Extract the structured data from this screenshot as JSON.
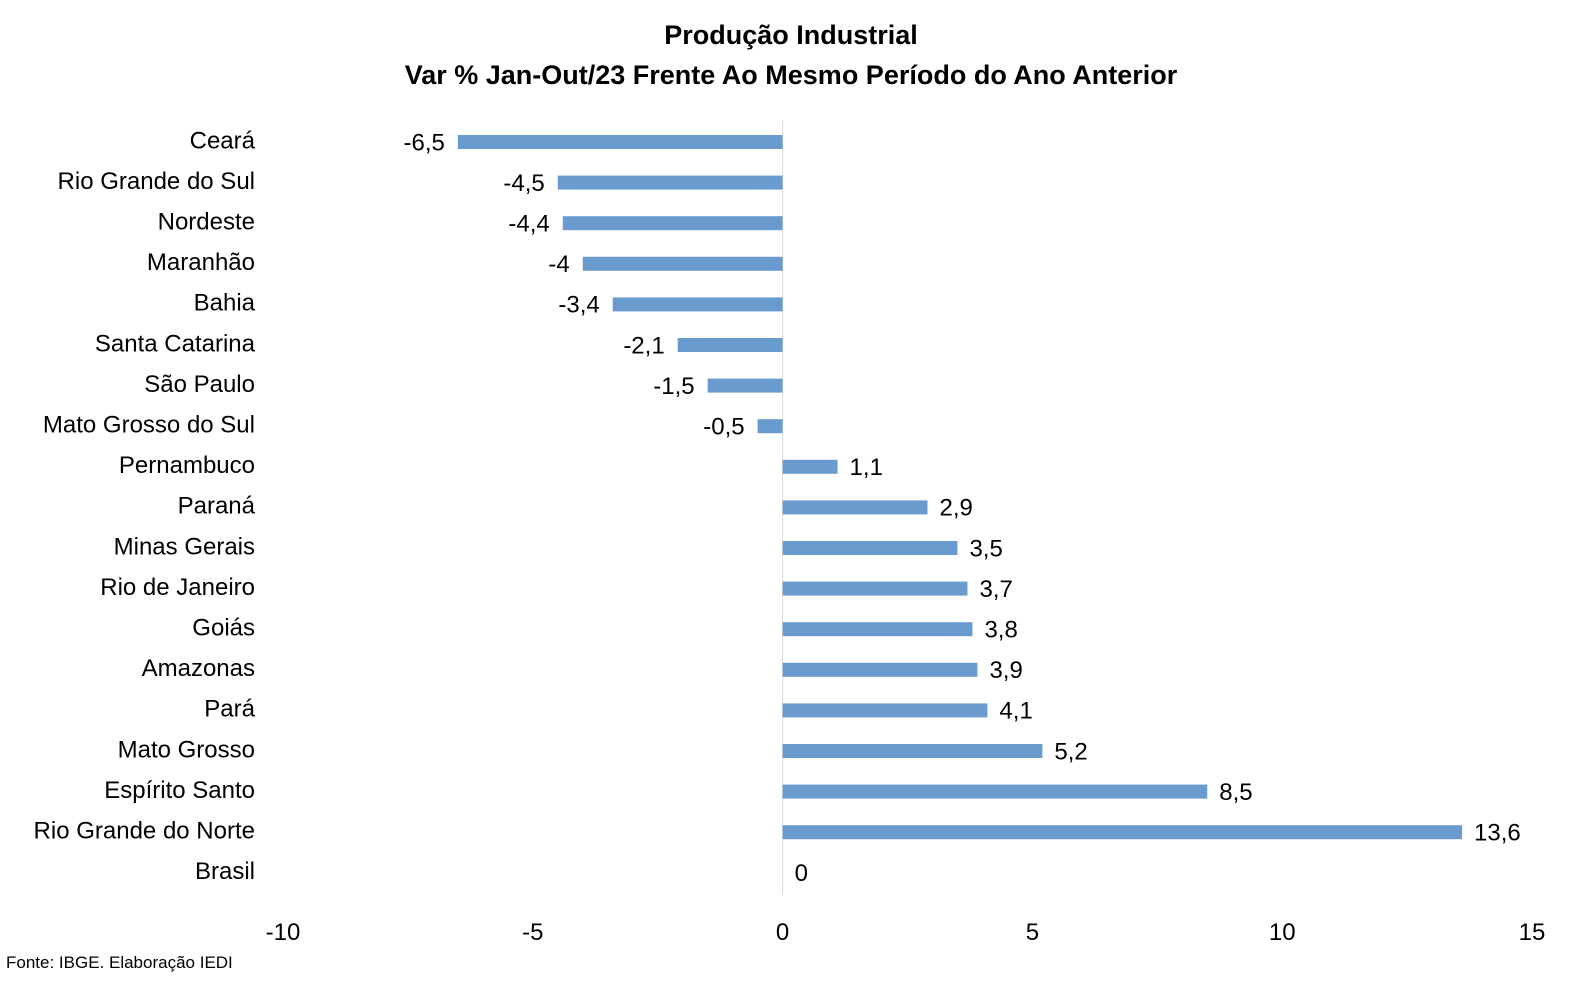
{
  "title": "Produção Industrial",
  "subtitle": "Var % Jan-Out/23 Frente Ao Mesmo Período do Ano Anterior",
  "source": "Fonte: IBGE. Elaboração IEDI",
  "chart_data": {
    "type": "bar",
    "orientation": "horizontal",
    "title": "Produção Industrial",
    "subtitle": "Var % Jan-Out/23 Frente Ao Mesmo Período do Ano Anterior",
    "xlabel": "",
    "ylabel": "",
    "xlim": [
      -10,
      15
    ],
    "xticks": [
      -10,
      -5,
      0,
      5,
      10,
      15
    ],
    "tick_labels": [
      "-10",
      "-5",
      "0",
      "5",
      "10",
      "15"
    ],
    "grid": false,
    "bar_color": "#6a9bcf",
    "categories": [
      "Ceará",
      "Rio Grande do Sul",
      "Nordeste",
      "Maranhão",
      "Bahia",
      "Santa Catarina",
      "São Paulo",
      "Mato Grosso do Sul",
      "Pernambuco",
      "Paraná",
      "Minas Gerais",
      "Rio de Janeiro",
      "Goiás",
      "Amazonas",
      "Pará",
      "Mato Grosso",
      "Espírito Santo",
      "Rio Grande do Norte",
      "Brasil"
    ],
    "values": [
      -6.5,
      -4.5,
      -4.4,
      -4,
      -3.4,
      -2.1,
      -1.5,
      -0.5,
      1.1,
      2.9,
      3.5,
      3.7,
      3.8,
      3.9,
      4.1,
      5.2,
      8.5,
      13.6,
      0
    ],
    "data_labels": [
      "-6,5",
      "-4,5",
      "-4,4",
      "-4",
      "-3,4",
      "-2,1",
      "-1,5",
      "-0,5",
      "1,1",
      "2,9",
      "3,5",
      "3,7",
      "3,8",
      "3,9",
      "4,1",
      "5,2",
      "8,5",
      "13,6",
      "0"
    ]
  }
}
